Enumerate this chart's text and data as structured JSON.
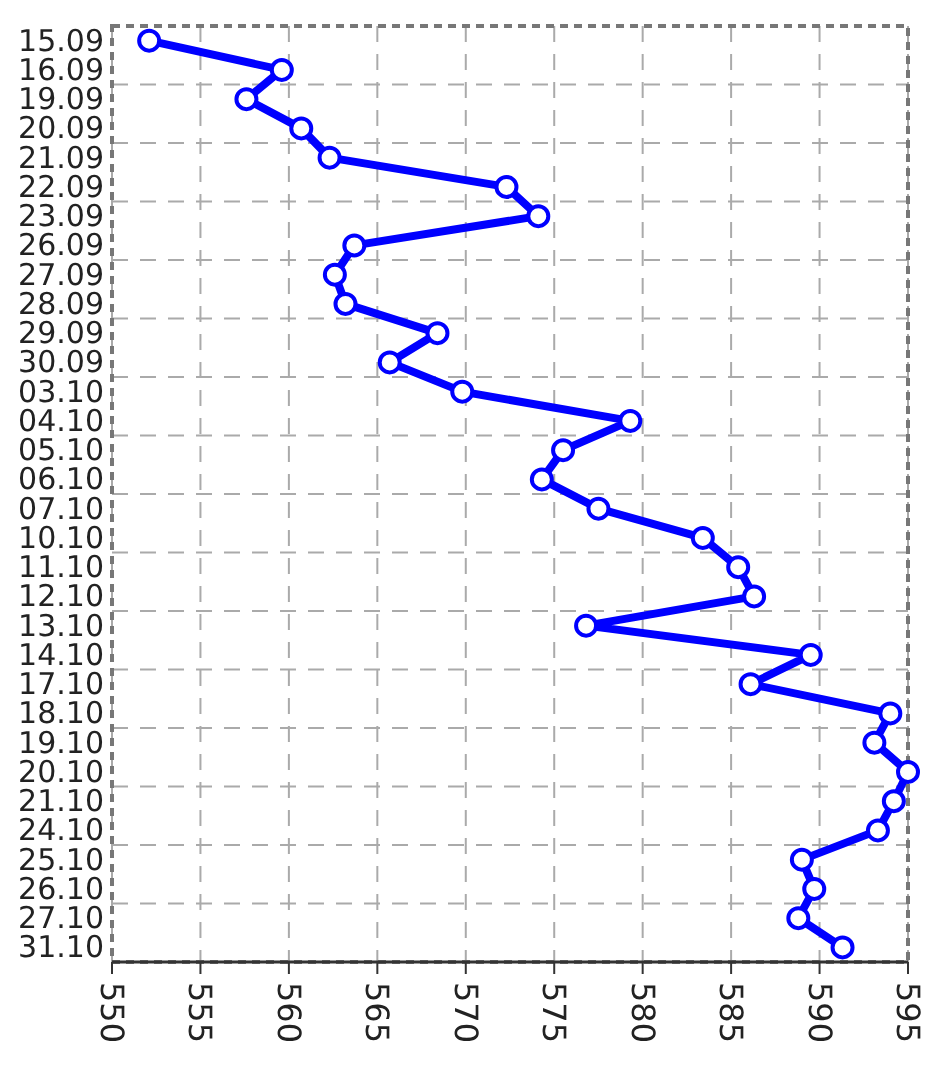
{
  "chart_data": {
    "type": "line",
    "orientation": "horizontal",
    "categories": [
      "15.09",
      "16.09",
      "19.09",
      "20.09",
      "21.09",
      "22.09",
      "23.09",
      "26.09",
      "27.09",
      "28.09",
      "29.09",
      "30.09",
      "03.10",
      "04.10",
      "05.10",
      "06.10",
      "07.10",
      "10.10",
      "11.10",
      "12.10",
      "13.10",
      "14.10",
      "17.10",
      "18.10",
      "19.10",
      "20.10",
      "21.10",
      "24.10",
      "25.10",
      "26.10",
      "27.10",
      "31.10"
    ],
    "series": [
      {
        "color": "#0000ff",
        "values": [
          552.1,
          559.6,
          557.6,
          560.7,
          562.3,
          572.3,
          574.1,
          563.7,
          562.6,
          563.2,
          568.4,
          565.7,
          569.8,
          579.3,
          575.5,
          574.3,
          577.5,
          583.4,
          585.4,
          586.3,
          576.8,
          589.5,
          586.1,
          594.0,
          593.1,
          595,
          594.2,
          593.3,
          589.0,
          589.7,
          588.8,
          591.3
        ]
      }
    ],
    "xlim": [
      550,
      595
    ],
    "xticks": [
      550,
      555,
      560,
      565,
      570,
      575,
      580,
      585,
      590,
      595
    ],
    "grid": true,
    "marker": "circle",
    "line_style": "solid"
  }
}
